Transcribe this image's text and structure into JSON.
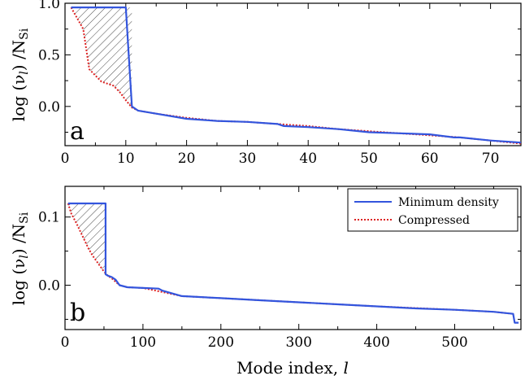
{
  "chart_data": [
    {
      "type": "line",
      "panel": "a",
      "panel_label": "a",
      "ylabel_main": "log (ν",
      "ylabel_sub": "l",
      "ylabel_end": ") /N",
      "ylabel_si": "Si",
      "xlabel": "",
      "xlim": [
        0,
        75
      ],
      "ylim": [
        -0.38,
        1.0
      ],
      "xticks": [
        0,
        10,
        20,
        30,
        40,
        50,
        60,
        70
      ],
      "yticks": [
        0.0,
        0.5,
        1.0
      ],
      "ytick_labels": [
        "0.0",
        "0.5",
        "1.0"
      ],
      "series": [
        {
          "name": "Minimum density",
          "color": "#3355dd",
          "style": "solid",
          "x": [
            1,
            10,
            11,
            12,
            15,
            20,
            25,
            30,
            35,
            36,
            40,
            45,
            50,
            55,
            60,
            64,
            65,
            70,
            75
          ],
          "y": [
            0.96,
            0.96,
            0.0,
            -0.04,
            -0.07,
            -0.12,
            -0.14,
            -0.15,
            -0.17,
            -0.19,
            -0.2,
            -0.22,
            -0.25,
            -0.26,
            -0.27,
            -0.3,
            -0.3,
            -0.33,
            -0.35
          ]
        },
        {
          "name": "Compressed",
          "color": "#dd2222",
          "style": "dotted",
          "x": [
            1,
            3,
            4,
            6,
            8,
            9,
            10,
            11,
            12,
            15,
            20,
            25,
            30,
            35,
            40,
            45,
            50,
            55,
            60,
            65,
            70,
            75
          ],
          "y": [
            0.96,
            0.75,
            0.36,
            0.24,
            0.2,
            0.14,
            0.06,
            -0.01,
            -0.04,
            -0.07,
            -0.11,
            -0.14,
            -0.15,
            -0.17,
            -0.19,
            -0.22,
            -0.24,
            -0.26,
            -0.28,
            -0.3,
            -0.33,
            -0.36
          ]
        }
      ]
    },
    {
      "type": "line",
      "panel": "b",
      "panel_label": "b",
      "ylabel_main": "log (ν",
      "ylabel_sub": "l",
      "ylabel_end": ") /N",
      "ylabel_si": "Si",
      "xlabel_main": "Mode index, ",
      "xlabel_var": "l",
      "xlim": [
        0,
        585
      ],
      "ylim": [
        -0.065,
        0.145
      ],
      "xticks": [
        0,
        100,
        200,
        300,
        400,
        500
      ],
      "yticks": [
        0.0,
        0.1
      ],
      "ytick_labels": [
        "0.0",
        "0.1"
      ],
      "series": [
        {
          "name": "Minimum density",
          "color": "#3355dd",
          "style": "solid",
          "x": [
            4,
            52,
            52,
            55,
            60,
            65,
            70,
            80,
            100,
            120,
            125,
            150,
            200,
            250,
            300,
            350,
            400,
            450,
            500,
            550,
            575,
            577,
            582
          ],
          "y": [
            0.12,
            0.12,
            0.016,
            0.014,
            0.012,
            0.008,
            0.0,
            -0.003,
            -0.004,
            -0.005,
            -0.008,
            -0.016,
            -0.019,
            -0.022,
            -0.025,
            -0.028,
            -0.031,
            -0.034,
            -0.036,
            -0.039,
            -0.042,
            -0.055,
            -0.055
          ]
        },
        {
          "name": "Compressed",
          "color": "#dd2222",
          "style": "dotted",
          "x": [
            4,
            8,
            15,
            20,
            25,
            30,
            35,
            40,
            45,
            50,
            55,
            60,
            70,
            80,
            100,
            150,
            200,
            300,
            400,
            500,
            550,
            575
          ],
          "y": [
            0.12,
            0.105,
            0.09,
            0.078,
            0.066,
            0.054,
            0.044,
            0.036,
            0.028,
            0.02,
            0.014,
            0.01,
            0.0,
            -0.003,
            -0.004,
            -0.016,
            -0.019,
            -0.025,
            -0.031,
            -0.036,
            -0.039,
            -0.042
          ]
        }
      ],
      "legend": {
        "placement": "top-right",
        "entries": [
          "Minimum density",
          "Compressed"
        ]
      }
    }
  ]
}
